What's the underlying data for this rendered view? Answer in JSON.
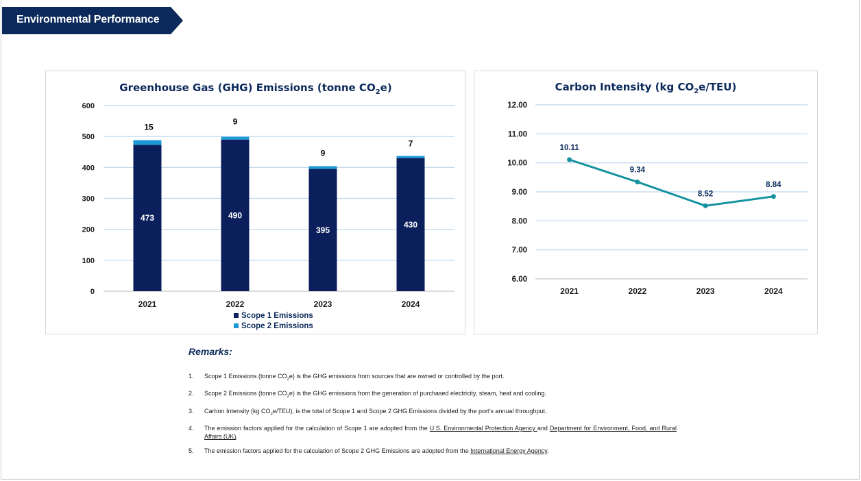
{
  "header": {
    "title": "Environmental Performance",
    "color": "#0b2a5b"
  },
  "chart_data": [
    {
      "type": "bar",
      "stacked": true,
      "title": "Greenhouse Gas (GHG) Emissions (tonne CO2e)",
      "title_parts": {
        "pre": "Greenhouse Gas (GHG) Emissions (tonne CO",
        "sub": "2",
        "post": "e)"
      },
      "categories": [
        "2021",
        "2022",
        "2023",
        "2024"
      ],
      "series": [
        {
          "name": "Scope 1 Emissions",
          "values": [
            473,
            490,
            395,
            430
          ],
          "color": "#0b1f5c"
        },
        {
          "name": "Scope 2 Emissions",
          "values": [
            15,
            9,
            9,
            7
          ],
          "color": "#1b9ad6"
        }
      ],
      "ylim": [
        0,
        600
      ],
      "yticks": [
        "0",
        "100",
        "200",
        "300",
        "400",
        "500",
        "600"
      ],
      "legend": "bottom",
      "grid": true
    },
    {
      "type": "line",
      "title": "Carbon Intensity (kg CO2e/TEU)",
      "title_parts": {
        "pre": "Carbon Intensity (kg CO",
        "sub": "2",
        "post": "e/TEU)"
      },
      "categories": [
        "2021",
        "2022",
        "2023",
        "2024"
      ],
      "series": [
        {
          "name": "Carbon Intensity",
          "values": [
            10.11,
            9.34,
            8.52,
            8.84
          ],
          "labels": [
            "10.11",
            "9.34",
            "8.52",
            "8.84"
          ],
          "color": "#1592a0"
        }
      ],
      "ylim": [
        6,
        12
      ],
      "yticks": [
        "6.00",
        "7.00",
        "8.00",
        "9.00",
        "10.00",
        "11.00",
        "12.00"
      ],
      "grid": true
    }
  ],
  "remarks": {
    "title": "Remarks:",
    "items": [
      {
        "num": "1.",
        "parts": [
          {
            "t": "Scope 1 Emissions (tonne CO"
          },
          {
            "t": "2",
            "sub": true
          },
          {
            "t": "e) is the GHG emissions from sources that are owned or controlled by the port."
          }
        ]
      },
      {
        "num": "2.",
        "parts": [
          {
            "t": "Scope 2 Emissions (tonne CO"
          },
          {
            "t": "2",
            "sub": true
          },
          {
            "t": "e) is the GHG emissions from the generation of purchased electricity, steam, heat and cooling."
          }
        ]
      },
      {
        "num": "3.",
        "parts": [
          {
            "t": "Carbon Intensity (kg CO"
          },
          {
            "t": "2",
            "sub": true
          },
          {
            "t": "e/TEU), is the total of Scope 1 and Scope 2 GHG Emissions divided by the port’s annual throughput."
          }
        ]
      },
      {
        "num": "4.",
        "parts": [
          {
            "t": "The emission factors applied for the calculation of Scope 1 are adopted from the "
          },
          {
            "t": "U.S. Environmental Protection Agency ",
            "link": true
          },
          {
            "t": "and "
          },
          {
            "t": "Department for Environment, Food, and Rural Affairs (UK)",
            "link": true
          },
          {
            "t": "."
          }
        ]
      },
      {
        "num": "5.",
        "parts": [
          {
            "t": "The emission factors applied for the calculation of Scope 2 GHG Emissions are adopted from the "
          },
          {
            "t": "International Energy Agency",
            "link": true
          },
          {
            "t": "."
          }
        ]
      }
    ]
  }
}
